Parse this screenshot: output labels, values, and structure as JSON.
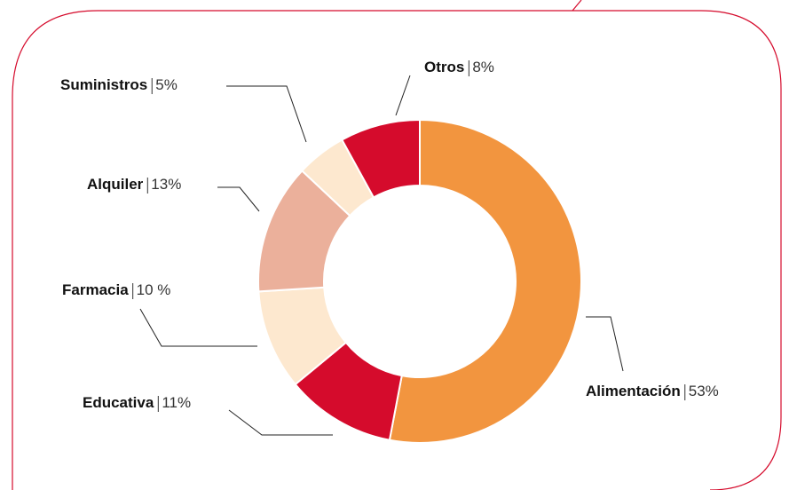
{
  "chart_data": {
    "type": "donut",
    "categories": [
      "Alimentación",
      "Educativa",
      "Farmacia",
      "Alquiler",
      "Suministros",
      "Otros"
    ],
    "values": [
      53,
      11,
      10,
      13,
      5,
      8
    ],
    "value_labels": [
      "53%",
      "11%",
      "10 %",
      "13%",
      "5%",
      "8%"
    ],
    "colors": [
      "#f2953f",
      "#d50b2c",
      "#fde8cf",
      "#ebb09b",
      "#fde8cf",
      "#d50b2c"
    ]
  }
}
